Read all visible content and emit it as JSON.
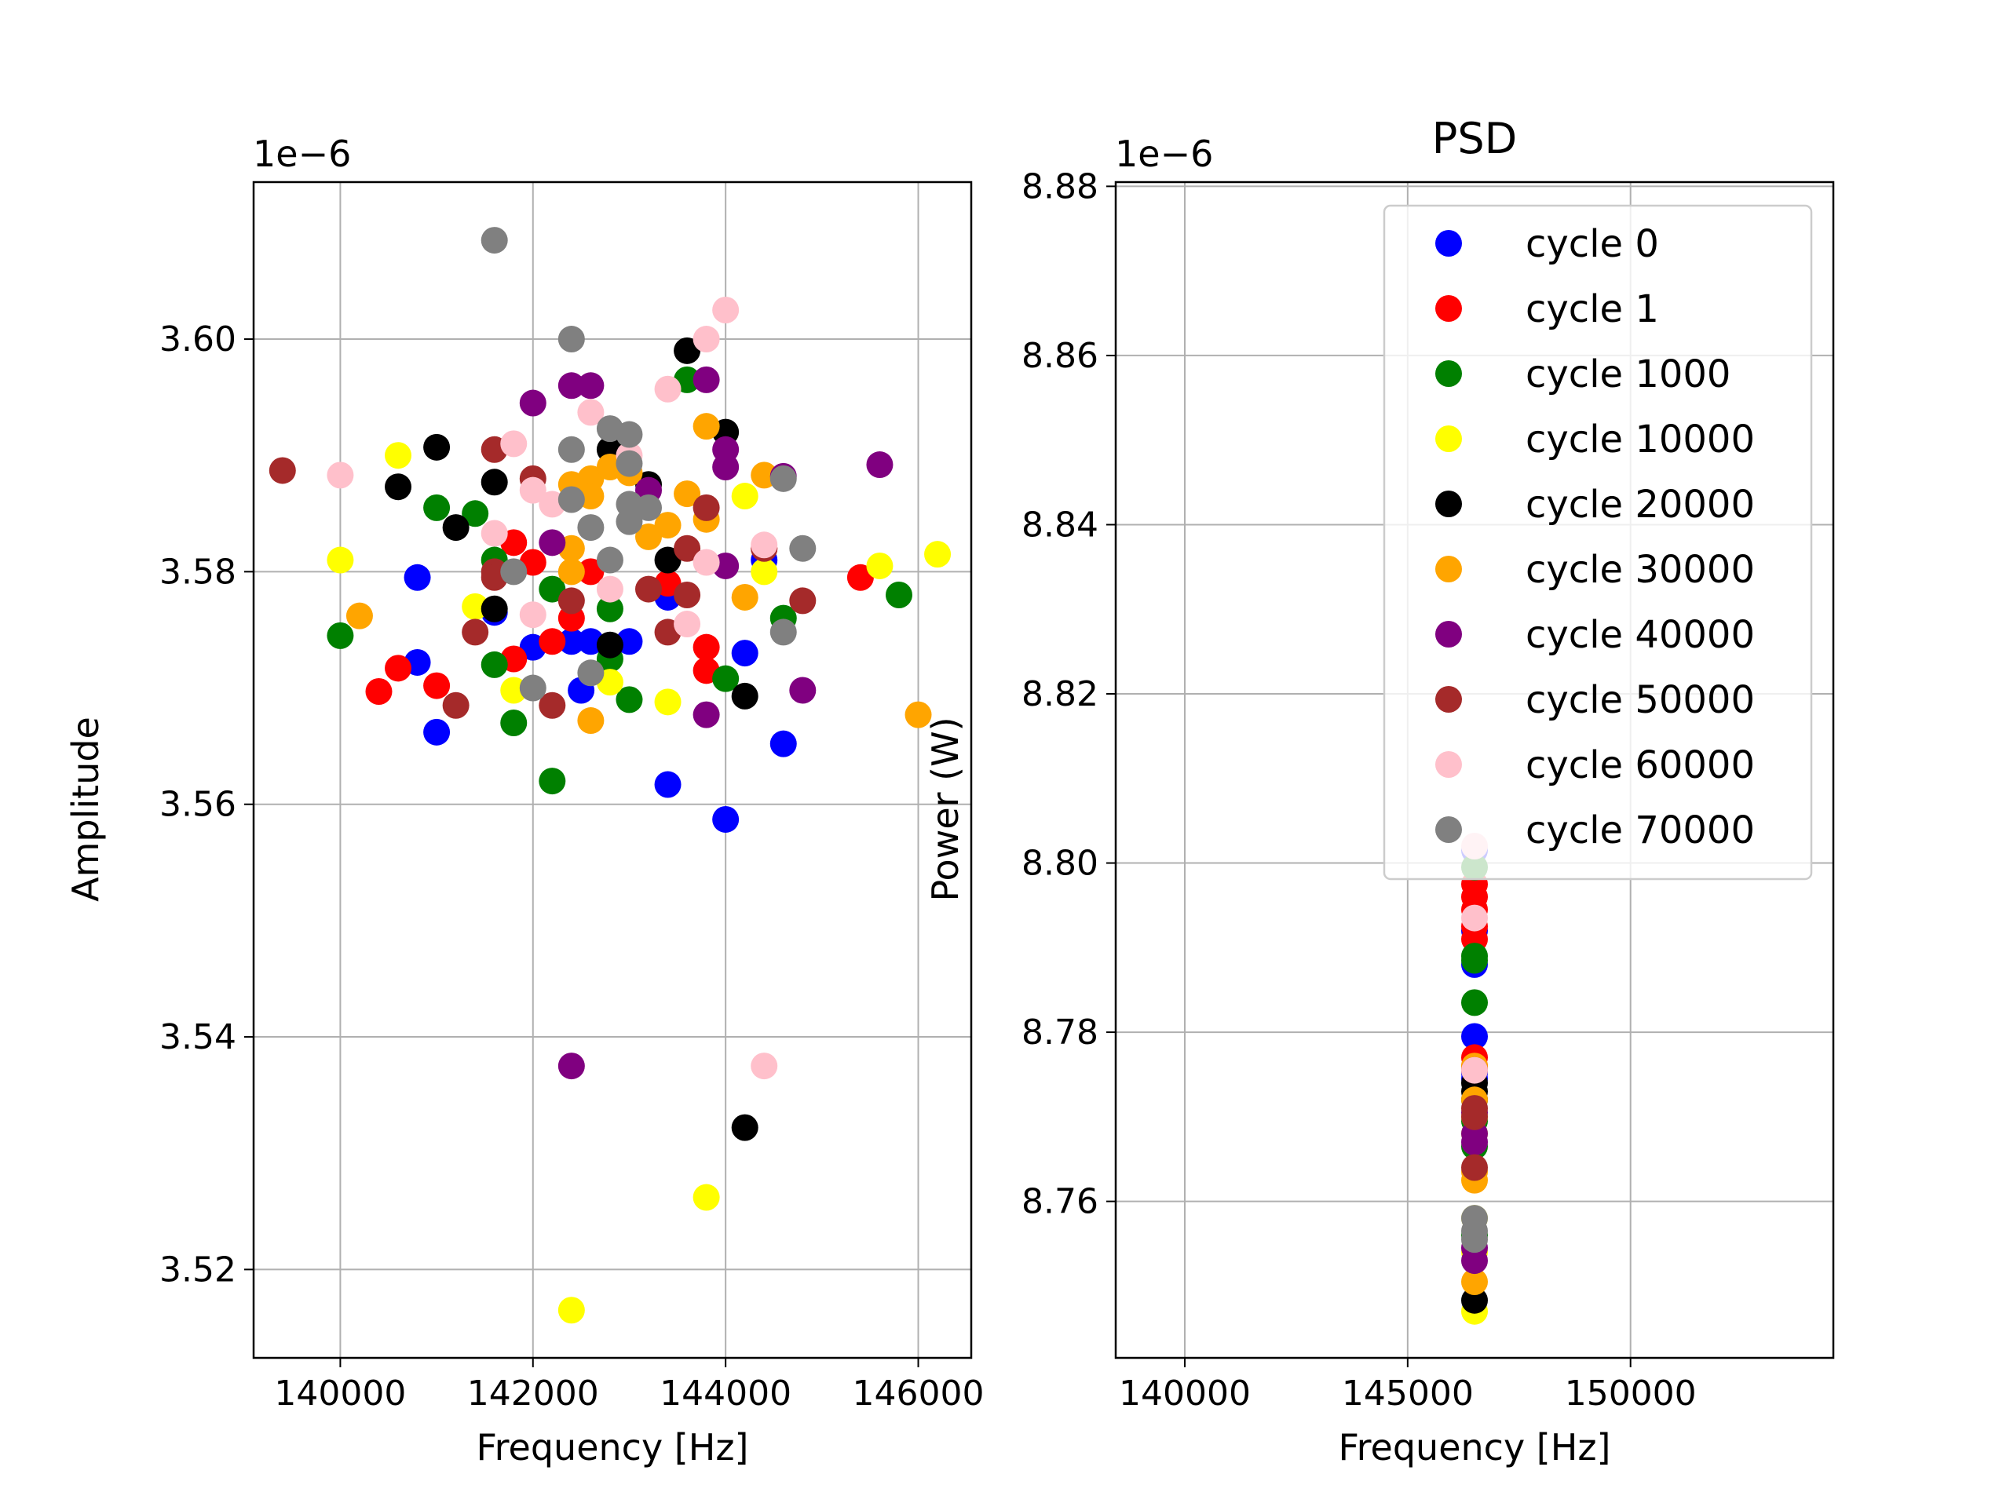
{
  "chart_data": [
    {
      "type": "scatter",
      "title": "",
      "xlabel": "Frequency [Hz]",
      "ylabel": "Amplitude",
      "offset_text": "1e−6",
      "xlim": [
        139100,
        146550
      ],
      "ylim": [
        3.5124,
        3.6135
      ],
      "xticks": [
        140000,
        142000,
        144000,
        146000
      ],
      "yticks": [
        3.52,
        3.54,
        3.56,
        3.58,
        3.6
      ],
      "xtick_labels": [
        "140000",
        "142000",
        "144000",
        "146000"
      ],
      "ytick_labels": [
        "3.52",
        "3.54",
        "3.56",
        "3.58",
        "3.60"
      ],
      "grid": true,
      "series": [
        {
          "name": "cycle 0",
          "color": "#0000ff",
          "points": [
            [
              140800,
              3.5795
            ],
            [
              140800,
              3.5722
            ],
            [
              141000,
              3.5662
            ],
            [
              141600,
              3.5765
            ],
            [
              142000,
              3.5735
            ],
            [
              142400,
              3.574
            ],
            [
              142500,
              3.5698
            ],
            [
              142600,
              3.574
            ],
            [
              143000,
              3.574
            ],
            [
              143400,
              3.5778
            ],
            [
              143400,
              3.5617
            ],
            [
              144000,
              3.5587
            ],
            [
              144200,
              3.573
            ],
            [
              144600,
              3.5652
            ],
            [
              144400,
              3.581
            ]
          ]
        },
        {
          "name": "cycle 1",
          "color": "#ff0000",
          "points": [
            [
              140400,
              3.5697
            ],
            [
              140600,
              3.5717
            ],
            [
              141000,
              3.5702
            ],
            [
              141800,
              3.5825
            ],
            [
              141800,
              3.5725
            ],
            [
              142000,
              3.5808
            ],
            [
              142200,
              3.574
            ],
            [
              142400,
              3.576
            ],
            [
              142600,
              3.58
            ],
            [
              143400,
              3.579
            ],
            [
              143800,
              3.5735
            ],
            [
              143800,
              3.5715
            ],
            [
              144400,
              3.582
            ],
            [
              145400,
              3.5795
            ]
          ]
        },
        {
          "name": "cycle 1000",
          "color": "#008000",
          "points": [
            [
              140000,
              3.5745
            ],
            [
              141000,
              3.5855
            ],
            [
              141400,
              3.585
            ],
            [
              141600,
              3.581
            ],
            [
              141600,
              3.572
            ],
            [
              141800,
              3.567
            ],
            [
              142200,
              3.5785
            ],
            [
              142200,
              3.562
            ],
            [
              142800,
              3.5768
            ],
            [
              142800,
              3.5725
            ],
            [
              143000,
              3.569
            ],
            [
              143600,
              3.5965
            ],
            [
              144000,
              3.5708
            ],
            [
              144600,
              3.576
            ],
            [
              145800,
              3.578
            ]
          ]
        },
        {
          "name": "cycle 10000",
          "color": "#ffff00",
          "points": [
            [
              140000,
              3.581
            ],
            [
              140600,
              3.59
            ],
            [
              141400,
              3.577
            ],
            [
              141800,
              3.5698
            ],
            [
              142800,
              3.5705
            ],
            [
              143400,
              3.5688
            ],
            [
              143800,
              3.5262
            ],
            [
              142400,
              3.5165
            ],
            [
              144200,
              3.5865
            ],
            [
              144400,
              3.58
            ],
            [
              145600,
              3.5805
            ],
            [
              146200,
              3.5815
            ]
          ]
        },
        {
          "name": "cycle 20000",
          "color": "#000000",
          "points": [
            [
              140600,
              3.5873
            ],
            [
              141000,
              3.5907
            ],
            [
              141200,
              3.5838
            ],
            [
              141600,
              3.5877
            ],
            [
              141600,
              3.5768
            ],
            [
              142800,
              3.5737
            ],
            [
              142800,
              3.5905
            ],
            [
              143200,
              3.5875
            ],
            [
              143400,
              3.581
            ],
            [
              143600,
              3.599
            ],
            [
              144000,
              3.592
            ],
            [
              144200,
              3.5693
            ],
            [
              144200,
              3.5322
            ]
          ]
        },
        {
          "name": "cycle 30000",
          "color": "#ffa500",
          "points": [
            [
              140200,
              3.5762
            ],
            [
              142400,
              3.5875
            ],
            [
              142400,
              3.582
            ],
            [
              142400,
              3.58
            ],
            [
              142600,
              3.588
            ],
            [
              142600,
              3.5865
            ],
            [
              142800,
              3.589
            ],
            [
              143000,
              3.5885
            ],
            [
              143200,
              3.583
            ],
            [
              143400,
              3.584
            ],
            [
              143600,
              3.5867
            ],
            [
              143800,
              3.5925
            ],
            [
              143800,
              3.5845
            ],
            [
              144200,
              3.5778
            ],
            [
              144400,
              3.5883
            ],
            [
              142600,
              3.5672
            ],
            [
              146000,
              3.5677
            ]
          ]
        },
        {
          "name": "cycle 40000",
          "color": "#800080",
          "points": [
            [
              142000,
              3.5945
            ],
            [
              142200,
              3.5825
            ],
            [
              142400,
              3.596
            ],
            [
              142600,
              3.596
            ],
            [
              143200,
              3.587
            ],
            [
              143800,
              3.5965
            ],
            [
              143800,
              3.5677
            ],
            [
              144000,
              3.5905
            ],
            [
              144000,
              3.589
            ],
            [
              144000,
              3.5805
            ],
            [
              144600,
              3.5882
            ],
            [
              144800,
              3.5698
            ],
            [
              145600,
              3.5892
            ],
            [
              142400,
              3.5375
            ]
          ]
        },
        {
          "name": "cycle 50000",
          "color": "#a52a2a",
          "points": [
            [
              139400,
              3.5887
            ],
            [
              141200,
              3.5685
            ],
            [
              141400,
              3.5748
            ],
            [
              141600,
              3.5905
            ],
            [
              141600,
              3.58
            ],
            [
              141600,
              3.5795
            ],
            [
              142000,
              3.588
            ],
            [
              142200,
              3.5685
            ],
            [
              142400,
              3.5775
            ],
            [
              143200,
              3.5785
            ],
            [
              143400,
              3.5748
            ],
            [
              143600,
              3.582
            ],
            [
              143600,
              3.578
            ],
            [
              143800,
              3.5855
            ],
            [
              144400,
              3.582
            ],
            [
              144800,
              3.5775
            ]
          ]
        },
        {
          "name": "cycle 60000",
          "color": "#ffc0cb",
          "points": [
            [
              140000,
              3.5883
            ],
            [
              141600,
              3.5833
            ],
            [
              141800,
              3.591
            ],
            [
              142000,
              3.587
            ],
            [
              142000,
              3.5763
            ],
            [
              142200,
              3.5858
            ],
            [
              142600,
              3.5937
            ],
            [
              142800,
              3.5785
            ],
            [
              143000,
              3.59
            ],
            [
              143400,
              3.5957
            ],
            [
              143600,
              3.5755
            ],
            [
              143800,
              3.5808
            ],
            [
              143800,
              3.6
            ],
            [
              144000,
              3.6025
            ],
            [
              144400,
              3.5823
            ],
            [
              144400,
              3.5375
            ]
          ]
        },
        {
          "name": "cycle 70000",
          "color": "#808080",
          "points": [
            [
              141600,
              3.6085
            ],
            [
              141800,
              3.58
            ],
            [
              142000,
              3.57
            ],
            [
              142400,
              3.6
            ],
            [
              142400,
              3.5905
            ],
            [
              142400,
              3.5862
            ],
            [
              142600,
              3.5838
            ],
            [
              142600,
              3.5713
            ],
            [
              142800,
              3.5923
            ],
            [
              142800,
              3.581
            ],
            [
              143000,
              3.5918
            ],
            [
              143000,
              3.5893
            ],
            [
              143000,
              3.5858
            ],
            [
              143000,
              3.5843
            ],
            [
              143200,
              3.5855
            ],
            [
              144600,
              3.588
            ],
            [
              144600,
              3.5748
            ],
            [
              144800,
              3.582
            ]
          ]
        }
      ]
    },
    {
      "type": "scatter",
      "title": "PSD",
      "xlabel": "Frequency [Hz]",
      "ylabel": "Power (W)",
      "offset_text": "1e−6",
      "xlim": [
        138450,
        154550
      ],
      "ylim": [
        8.7415,
        8.8805
      ],
      "xticks": [
        140000,
        145000,
        150000
      ],
      "yticks": [
        8.76,
        8.78,
        8.8,
        8.82,
        8.84,
        8.86,
        8.88
      ],
      "xtick_labels": [
        "140000",
        "145000",
        "150000"
      ],
      "ytick_labels": [
        "8.76",
        "8.78",
        "8.80",
        "8.82",
        "8.84",
        "8.86",
        "8.88"
      ],
      "grid": true,
      "legend_position": "upper right",
      "x_all": 146500,
      "series": [
        {
          "name": "cycle 0",
          "color": "#0000ff",
          "y": [
            8.788,
            8.7795,
            8.7752,
            8.7745,
            8.792,
            8.8015
          ]
        },
        {
          "name": "cycle 1",
          "color": "#ff0000",
          "y": [
            8.7975,
            8.796,
            8.7945,
            8.7925,
            8.791,
            8.777,
            8.776
          ]
        },
        {
          "name": "cycle 1000",
          "color": "#008000",
          "y": [
            8.789,
            8.7885,
            8.7835,
            8.7695,
            8.7665,
            8.756,
            8.7995
          ]
        },
        {
          "name": "cycle 10000",
          "color": "#ffff00",
          "y": [
            8.747,
            8.754,
            8.758,
            8.768,
            8.77
          ]
        },
        {
          "name": "cycle 20000",
          "color": "#000000",
          "y": [
            8.7483,
            8.773,
            8.774,
            8.772
          ]
        },
        {
          "name": "cycle 30000",
          "color": "#ffa500",
          "y": [
            8.7505,
            8.7625,
            8.7635,
            8.772,
            8.776
          ]
        },
        {
          "name": "cycle 40000",
          "color": "#800080",
          "y": [
            8.753,
            8.7545,
            8.767,
            8.768,
            8.7705
          ]
        },
        {
          "name": "cycle 50000",
          "color": "#a52a2a",
          "y": [
            8.764,
            8.77,
            8.771,
            8.7755
          ]
        },
        {
          "name": "cycle 60000",
          "color": "#ffc0cb",
          "y": [
            8.7935,
            8.7755,
            8.802
          ]
        },
        {
          "name": "cycle 70000",
          "color": "#808080",
          "y": [
            8.7555,
            8.7565,
            8.758
          ]
        }
      ]
    }
  ]
}
